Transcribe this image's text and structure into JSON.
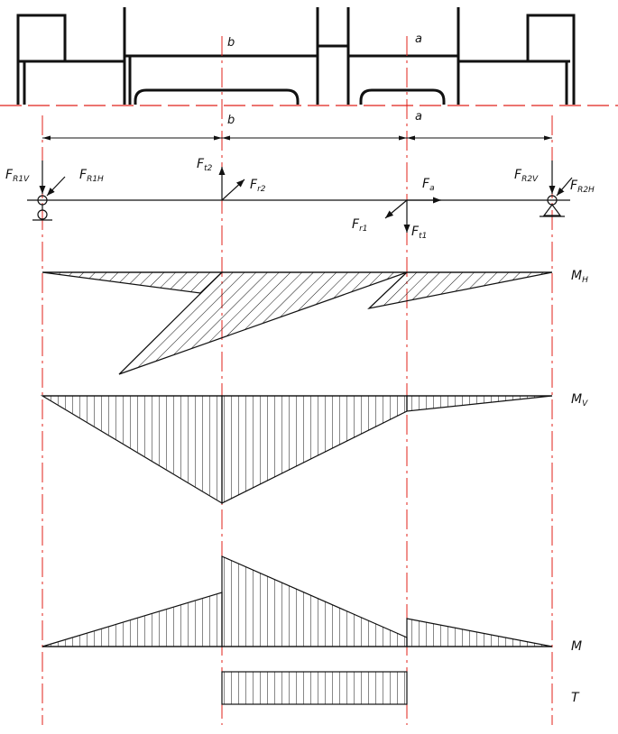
{
  "colors": {
    "line": "#111111",
    "axis": "#e0201a",
    "background": "#ffffff"
  },
  "sections": {
    "b_top": "b",
    "b_dim": "b",
    "a_top": "a",
    "a_dim": "a"
  },
  "loads": {
    "fr1v": {
      "main": "F",
      "sub": "R1V"
    },
    "fr1h": {
      "main": "F",
      "sub": "R1H"
    },
    "ft2": {
      "main": "F",
      "sub": "t2"
    },
    "fr2": {
      "main": "F",
      "sub": "r2"
    },
    "fa": {
      "main": "F",
      "sub": "a"
    },
    "fr1": {
      "main": "F",
      "sub": "r1"
    },
    "ft1": {
      "main": "F",
      "sub": "t1"
    },
    "fr2v": {
      "main": "F",
      "sub": "R2V"
    },
    "fr2h": {
      "main": "F",
      "sub": "R2H"
    }
  },
  "diagrams": {
    "mh": {
      "main": "M",
      "sub": "H"
    },
    "mv": {
      "main": "M",
      "sub": "V"
    },
    "m": {
      "main": "M",
      "sub": ""
    },
    "t": {
      "main": "T",
      "sub": ""
    }
  }
}
